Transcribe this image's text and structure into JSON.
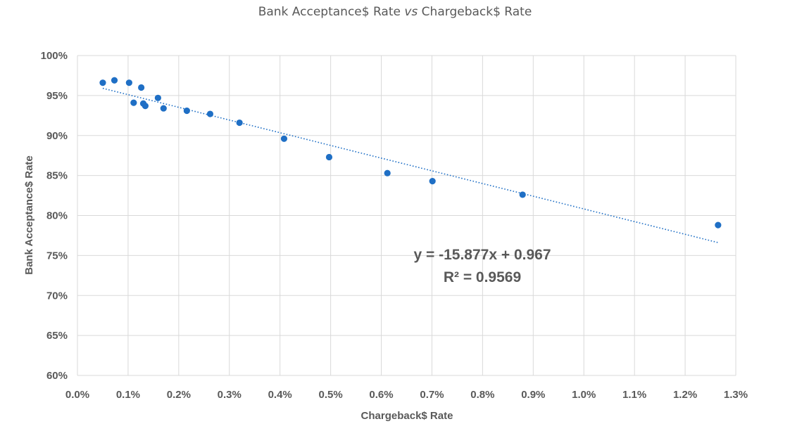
{
  "chart_data": {
    "type": "scatter",
    "title_part1": "Bank Acceptance$ Rate ",
    "title_vs": "vs",
    "title_part2": " Chargeback$ Rate",
    "xlabel": "Chargeback$ Rate",
    "ylabel": "Bank Acceptance$ Rate",
    "xlim": [
      0,
      0.013
    ],
    "ylim": [
      0.6,
      1.0
    ],
    "x_ticks": [
      0,
      0.001,
      0.002,
      0.003,
      0.004,
      0.005,
      0.006,
      0.007,
      0.008,
      0.009,
      0.01,
      0.011,
      0.012,
      0.013
    ],
    "x_tick_labels": [
      "0.0%",
      "0.1%",
      "0.2%",
      "0.3%",
      "0.4%",
      "0.5%",
      "0.6%",
      "0.7%",
      "0.8%",
      "0.9%",
      "1.0%",
      "1.1%",
      "1.2%",
      "1.3%"
    ],
    "y_ticks": [
      0.6,
      0.65,
      0.7,
      0.75,
      0.8,
      0.85,
      0.9,
      0.95,
      1.0
    ],
    "y_tick_labels": [
      "60%",
      "65%",
      "70%",
      "75%",
      "80%",
      "85%",
      "90%",
      "95%",
      "100%"
    ],
    "grid": true,
    "marker_color": "#1f6fc5",
    "trendline_color": "#1f6fc5",
    "points": [
      {
        "x": 0.0005,
        "y": 0.966
      },
      {
        "x": 0.00073,
        "y": 0.969
      },
      {
        "x": 0.00102,
        "y": 0.966
      },
      {
        "x": 0.00111,
        "y": 0.941
      },
      {
        "x": 0.00126,
        "y": 0.96
      },
      {
        "x": 0.0013,
        "y": 0.94
      },
      {
        "x": 0.00134,
        "y": 0.937
      },
      {
        "x": 0.00159,
        "y": 0.947
      },
      {
        "x": 0.0017,
        "y": 0.934
      },
      {
        "x": 0.00216,
        "y": 0.931
      },
      {
        "x": 0.00262,
        "y": 0.927
      },
      {
        "x": 0.0032,
        "y": 0.916
      },
      {
        "x": 0.00408,
        "y": 0.896
      },
      {
        "x": 0.00497,
        "y": 0.873
      },
      {
        "x": 0.00612,
        "y": 0.853
      },
      {
        "x": 0.00701,
        "y": 0.843
      },
      {
        "x": 0.00879,
        "y": 0.826
      },
      {
        "x": 0.01265,
        "y": 0.788
      }
    ],
    "trendline": {
      "slope": -15.877,
      "intercept": 0.967,
      "x_range": [
        0.0005,
        0.01265
      ],
      "equation": "y = -15.877x + 0.967",
      "r_squared": "R² = 0.9569"
    }
  }
}
